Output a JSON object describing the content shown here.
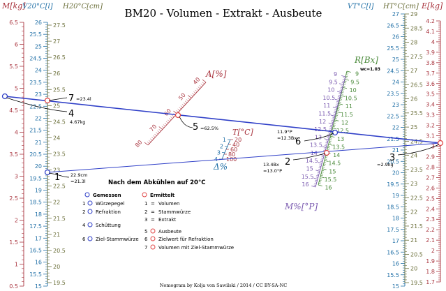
{
  "title": "BM20 - Volumen - Extrakt - Ausbeute",
  "footer": "Nomogram by Kolja von Sawilski / 2014 / CC BY-SA-NC",
  "colors": {
    "mass": "#a8323c",
    "vol20": "#1f6fa6",
    "height": "#6b6f3a",
    "brix": "#4a8a3a",
    "mpercent": "#7b5bb0",
    "line": "#3040c8",
    "note": "#000000"
  },
  "axes": {
    "left_mass": {
      "label": "M[kg]",
      "ticks": [
        "0.5",
        "1",
        "1.5",
        "2",
        "2.5",
        "3",
        "3.5",
        "4",
        "4.5",
        "5",
        "5.5",
        "6",
        "6.5"
      ]
    },
    "left_volume": {
      "label": "V20°C[l]",
      "ticks": [
        "15",
        "15.5",
        "16",
        "16.5",
        "17",
        "17.5",
        "18",
        "18.5",
        "19",
        "19.5",
        "20",
        "20.5",
        "21",
        "21.5",
        "22",
        "22.5",
        "23",
        "23.5",
        "24",
        "24.5",
        "25",
        "25.5",
        "26"
      ]
    },
    "left_height": {
      "label": "H20°C[cm]",
      "ticks": [
        "19.5",
        "20",
        "20.5",
        "21",
        "21.5",
        "22",
        "22.5",
        "23",
        "23.5",
        "24",
        "24.5",
        "25",
        "25.5",
        "26",
        "26.5",
        "27",
        "27.5"
      ]
    },
    "right_volume": {
      "label": "VT°C[l]",
      "ticks": [
        "15",
        "15.5",
        "16",
        "16.5",
        "17",
        "17.5",
        "18",
        "18.5",
        "19",
        "19.5",
        "20",
        "20.5",
        "21",
        "21.5",
        "22",
        "22.5",
        "23",
        "23.5",
        "24",
        "24.5",
        "25",
        "25.5",
        "26",
        "26.5",
        "27"
      ]
    },
    "right_height": {
      "label": "HT°C[cm]",
      "ticks": [
        "19.5",
        "20",
        "20.5",
        "21",
        "21.5",
        "22",
        "22.5",
        "23",
        "23.5",
        "24",
        "24.5",
        "25",
        "25.5",
        "26",
        "26.5",
        "27",
        "27.5",
        "28",
        "28.5",
        "29"
      ]
    },
    "right_extract": {
      "label": "E[kg]",
      "ticks": [
        "1.7",
        "1.8",
        "1.9",
        "2",
        "2.1",
        "2.2",
        "2.3",
        "2.4",
        "2.5",
        "2.6",
        "2.7",
        "2.8",
        "2.9",
        "3",
        "3.1",
        "3.2",
        "3.3",
        "3.4",
        "3.5",
        "3.6",
        "3.7",
        "3.8",
        "3.9",
        "4",
        "4.1",
        "4.2"
      ]
    },
    "brix": {
      "label": "R[Bx]",
      "sub": "wc=1.03",
      "ticks": [
        "9",
        "9.5",
        "10",
        "10.5",
        "11",
        "11.5",
        "12",
        "12.5",
        "13",
        "13.5",
        "14",
        "14.5",
        "15",
        "15.5",
        "16"
      ]
    },
    "mpercent": {
      "label": "M%[°P]",
      "ticks": [
        "9",
        "9.5",
        "10",
        "10.5",
        "11",
        "11.5",
        "12",
        "12.5",
        "13",
        "13.5",
        "14",
        "14.5",
        "15",
        "15.5",
        "16"
      ]
    },
    "apercent": {
      "label": "A[%]",
      "ticks": [
        "80",
        "70",
        "60",
        "50",
        "40"
      ]
    },
    "temp": {
      "label": "T[°C]",
      "left_ticks": [
        "1",
        "2",
        "3",
        "4"
      ],
      "right_ticks": [
        "20",
        "40",
        "60",
        "80",
        "100"
      ]
    },
    "delta": {
      "label": "Δ%"
    }
  },
  "annotations": {
    "p1_num": "1",
    "p1_a": "22.9cm",
    "p1_b": "=21.3l",
    "p2_num": "2",
    "p2_a": "13.4Bx",
    "p2_b": "=13.0°P",
    "p3_num": "3",
    "p3_a": "=2.9kg",
    "p4_num": "4",
    "p4_a": "4.67kg",
    "p5_num": "5",
    "p5_a": "=62.5%",
    "p6_num": "6",
    "p6_a": "11.9°P",
    "p6_b": "=12.3Bx",
    "p7_num": "7",
    "p7_a": "=23.4l"
  },
  "legend": {
    "title": "Nach dem Abkühlen auf 20°C",
    "measured_title": "Gemessen",
    "computed_title": "Ermittelt",
    "measured": [
      {
        "num": "1",
        "text": "Würzepegel"
      },
      {
        "num": "2",
        "text": "Refraktion"
      },
      {
        "num": "4",
        "text": "Schüttung"
      },
      {
        "num": "6",
        "text": "Ziel-Stammwürze"
      }
    ],
    "computed": [
      {
        "num": "1",
        "text": "Volumen"
      },
      {
        "num": "2",
        "text": "Stammwürze"
      },
      {
        "num": "3",
        "text": "Extrakt"
      },
      {
        "num": "5",
        "text": "Ausbeute"
      },
      {
        "num": "6",
        "text": "Zielwert für Refraktion"
      },
      {
        "num": "7",
        "text": "Volumen mit Ziel-Stammwürze"
      }
    ]
  }
}
